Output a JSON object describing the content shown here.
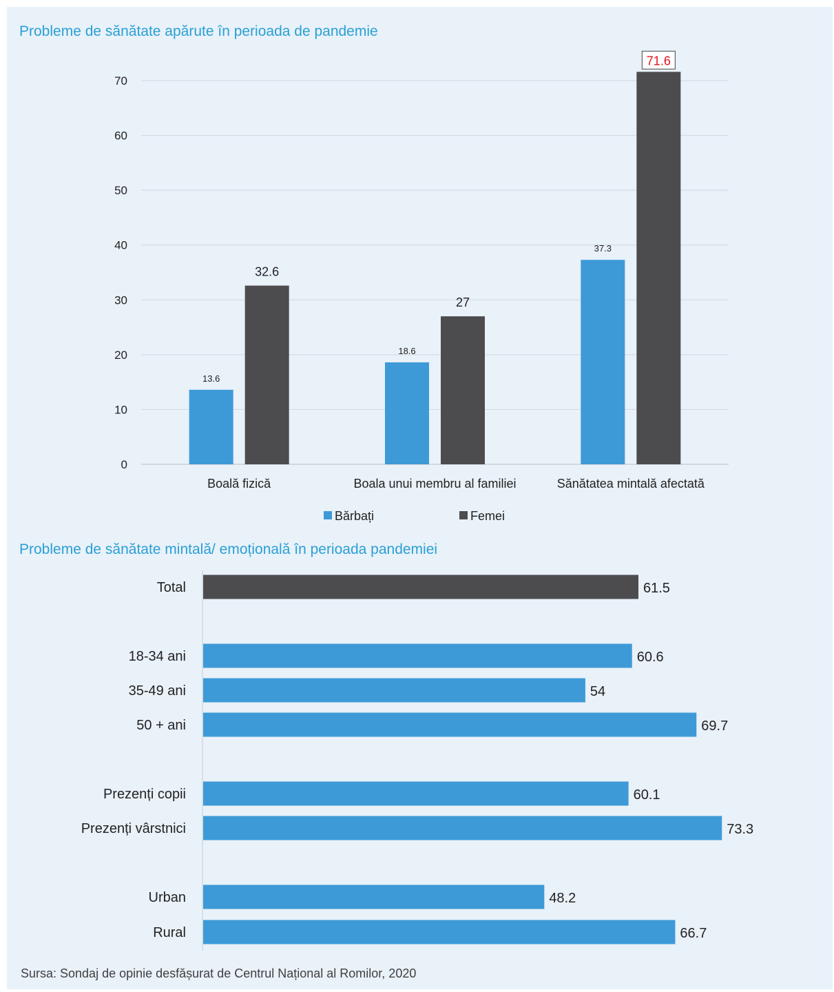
{
  "chart_data": [
    {
      "type": "bar",
      "title": "Probleme de sănătate apărute în perioada de pandemie",
      "categories": [
        "Boală fizică",
        "Boala unui membru al familiei",
        "Sănătatea mintală afectată"
      ],
      "series": [
        {
          "name": "Bărbați",
          "values": [
            13.6,
            18.6,
            37.3
          ],
          "color": "#3d9ad7"
        },
        {
          "name": "Femei",
          "values": [
            32.6,
            27,
            71.6
          ],
          "color": "#4c4c4e"
        }
      ],
      "data_labels": [
        [
          "13.6",
          "18.6",
          "37.3"
        ],
        [
          "32.6",
          "27",
          "71.6"
        ]
      ],
      "highlight_color": "#e0141e",
      "ylim": [
        0,
        70
      ],
      "yticks": [
        0,
        10,
        20,
        30,
        40,
        50,
        60,
        70
      ],
      "grid": true,
      "legend": "bottom"
    },
    {
      "type": "bar",
      "orientation": "horizontal",
      "title": "Probleme de sănătate mintală/ emoțională în perioada pandemiei",
      "categories": [
        "Total",
        "18-34 ani",
        "35-49 ani",
        "50 + ani",
        "Prezenți copii",
        "Prezenți vârstnici",
        "Urban",
        "Rural"
      ],
      "values": [
        61.5,
        60.6,
        54,
        69.7,
        60.1,
        73.3,
        48.2,
        66.7
      ],
      "groups": [
        1,
        2,
        2,
        2,
        3,
        3,
        4,
        4
      ],
      "colors": {
        "total": "#4c4c4e",
        "segments": "#3d9ad7"
      }
    }
  ],
  "source": "Sursa: Sondaj de opinie desfășurat de Centrul Național al Romilor, 2020"
}
